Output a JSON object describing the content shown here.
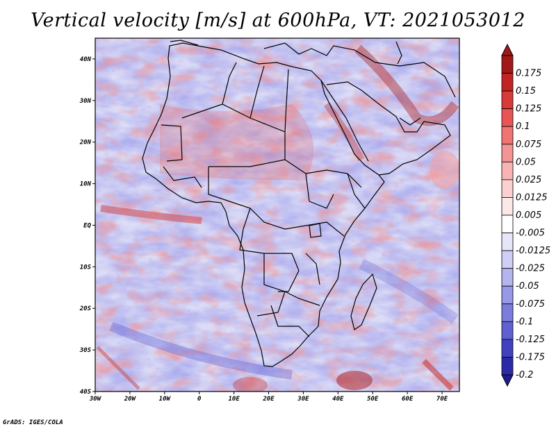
{
  "title": "Vertical velocity [m/s] at 600hPa, VT: 2021053012",
  "credit": "GrADS: IGES/COLA",
  "map": {
    "lon_range": [
      -30,
      75
    ],
    "lat_range": [
      -40,
      45
    ],
    "lat_ticks": [
      {
        "value": 40,
        "label": "40N"
      },
      {
        "value": 30,
        "label": "30N"
      },
      {
        "value": 20,
        "label": "20N"
      },
      {
        "value": 10,
        "label": "10N"
      },
      {
        "value": 0,
        "label": "EQ"
      },
      {
        "value": -10,
        "label": "10S"
      },
      {
        "value": -20,
        "label": "20S"
      },
      {
        "value": -30,
        "label": "30S"
      },
      {
        "value": -40,
        "label": "40S"
      }
    ],
    "lon_ticks": [
      {
        "value": -30,
        "label": "30W"
      },
      {
        "value": -20,
        "label": "20W"
      },
      {
        "value": -10,
        "label": "10W"
      },
      {
        "value": 0,
        "label": "0"
      },
      {
        "value": 10,
        "label": "10E"
      },
      {
        "value": 20,
        "label": "20E"
      },
      {
        "value": 30,
        "label": "30E"
      },
      {
        "value": 40,
        "label": "40E"
      },
      {
        "value": 50,
        "label": "50E"
      },
      {
        "value": 60,
        "label": "60E"
      },
      {
        "value": 70,
        "label": "70E"
      }
    ]
  },
  "colorbar": {
    "levels": [
      {
        "label": "0.175",
        "color": "#a01818"
      },
      {
        "label": "0.15",
        "color": "#c22424"
      },
      {
        "label": "0.125",
        "color": "#d83a3a"
      },
      {
        "label": "0.1",
        "color": "#e85454"
      },
      {
        "label": "0.075",
        "color": "#f07474"
      },
      {
        "label": "0.05",
        "color": "#f49494"
      },
      {
        "label": "0.025",
        "color": "#f8b4b4"
      },
      {
        "label": "0.0125",
        "color": "#fbd0d0"
      },
      {
        "label": "0.005",
        "color": "#fde8e8"
      },
      {
        "label": "-0.005",
        "color": "#ffffff"
      },
      {
        "label": "-0.0125",
        "color": "#e6e6fa"
      },
      {
        "label": "-0.025",
        "color": "#cfcff5"
      },
      {
        "label": "-0.05",
        "color": "#b4b4ee"
      },
      {
        "label": "-0.075",
        "color": "#9898e6"
      },
      {
        "label": "-0.1",
        "color": "#7c7cdc"
      },
      {
        "label": "-0.125",
        "color": "#6060d0"
      },
      {
        "label": "-0.175",
        "color": "#4242c0"
      },
      {
        "label": "-0.2",
        "color": "#2a2aa8"
      }
    ],
    "below_color": "#1c1c90"
  }
}
